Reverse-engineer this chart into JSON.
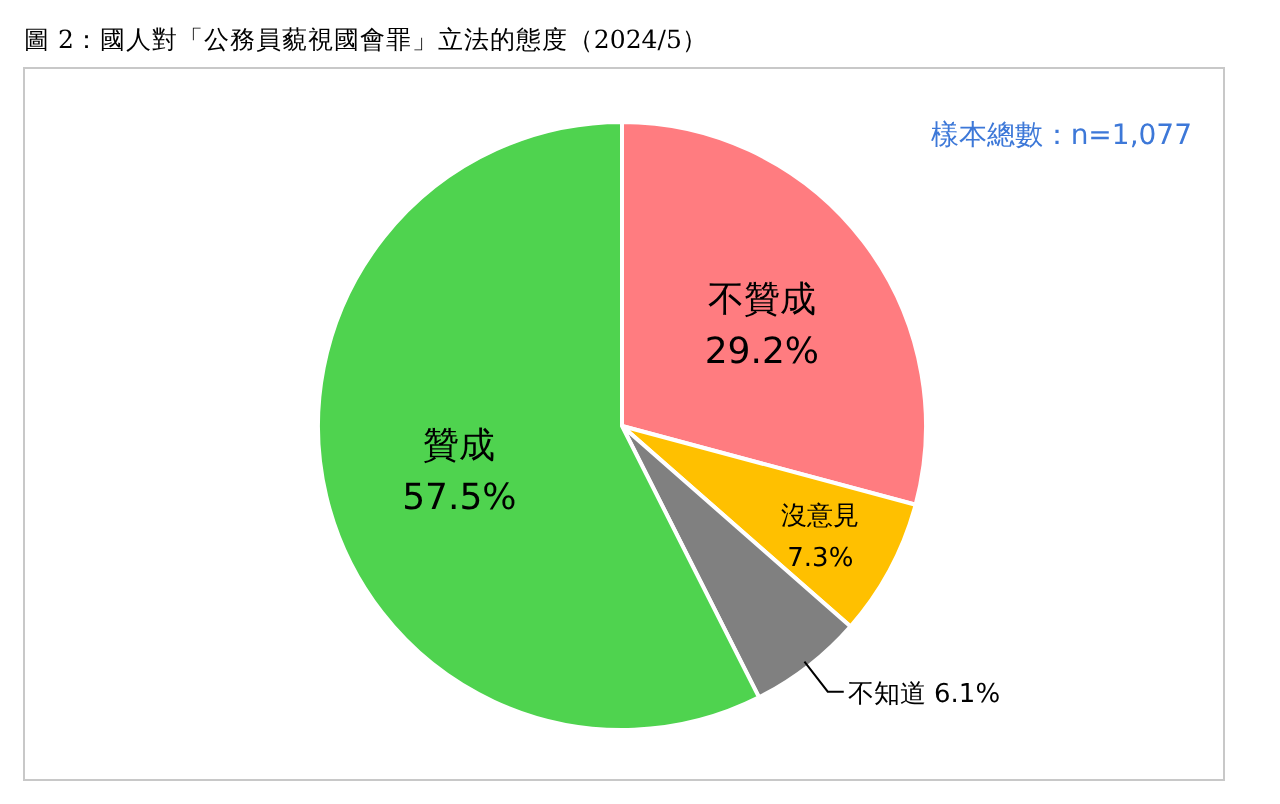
{
  "chart_data": {
    "type": "pie",
    "title": "圖 2：國人對「公務員藐視國會罪」立法的態度（2024/5）",
    "annotations": [
      "樣本總數：n=1,077"
    ],
    "categories": [
      "不贊成",
      "沒意見",
      "不知道",
      "贊成"
    ],
    "values": [
      29.2,
      7.3,
      6.1,
      57.5
    ],
    "value_labels": [
      "29.2%",
      "7.3%",
      "6.1%",
      "57.5%"
    ],
    "colors": [
      "#ff7c80",
      "#ffc000",
      "#808080",
      "#4fd34f"
    ]
  }
}
